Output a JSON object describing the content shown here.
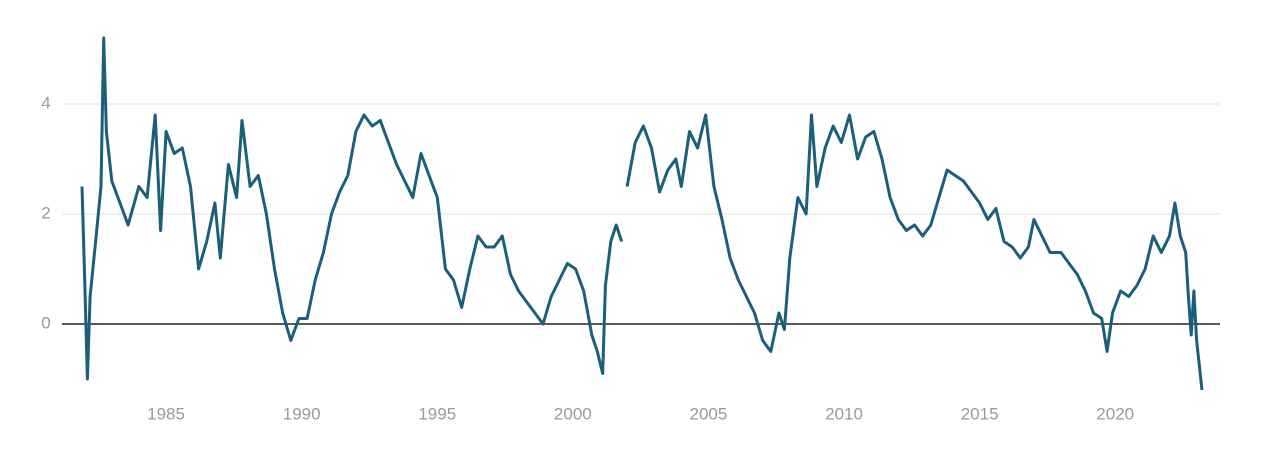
{
  "chart_data": {
    "type": "line",
    "x": [
      1981.9,
      1982.0,
      1982.1,
      1982.2,
      1982.4,
      1982.6,
      1982.7,
      1982.8,
      1983.0,
      1983.3,
      1983.6,
      1984.0,
      1984.3,
      1984.6,
      1984.8,
      1985.0,
      1985.3,
      1985.6,
      1985.9,
      1986.2,
      1986.5,
      1986.8,
      1987.0,
      1987.3,
      1987.6,
      1987.8,
      1988.1,
      1988.4,
      1988.7,
      1989.0,
      1989.3,
      1989.6,
      1989.9,
      1990.2,
      1990.5,
      1990.8,
      1991.1,
      1991.4,
      1991.7,
      1992.0,
      1992.3,
      1992.6,
      1992.9,
      1993.2,
      1993.5,
      1993.8,
      1994.1,
      1994.4,
      1994.7,
      1995.0,
      1995.3,
      1995.6,
      1995.9,
      1996.2,
      1996.5,
      1996.8,
      1997.1,
      1997.4,
      1997.7,
      1998.0,
      1998.3,
      1998.6,
      1998.9,
      1999.2,
      1999.5,
      1999.8,
      2000.1,
      2000.4,
      2000.7,
      2000.9,
      2001.1,
      2001.2,
      2001.4,
      2001.6,
      2001.8,
      2001.9,
      2002.0,
      2002.3,
      2002.6,
      2002.9,
      2003.2,
      2003.5,
      2003.8,
      2004.0,
      2004.3,
      2004.6,
      2004.9,
      2005.2,
      2005.5,
      2005.8,
      2006.1,
      2006.4,
      2006.7,
      2007.0,
      2007.3,
      2007.6,
      2007.8,
      2008.0,
      2008.3,
      2008.6,
      2008.8,
      2009.0,
      2009.3,
      2009.6,
      2009.9,
      2010.2,
      2010.5,
      2010.8,
      2011.1,
      2011.4,
      2011.7,
      2012.0,
      2012.3,
      2012.6,
      2012.9,
      2013.2,
      2013.5,
      2013.8,
      2014.1,
      2014.4,
      2014.7,
      2015.0,
      2015.3,
      2015.6,
      2015.9,
      2016.2,
      2016.5,
      2016.8,
      2017.0,
      2017.3,
      2017.6,
      2018.0,
      2018.3,
      2018.6,
      2018.9,
      2019.2,
      2019.5,
      2019.7,
      2019.9,
      2020.2,
      2020.5,
      2020.8,
      2021.1,
      2021.4,
      2021.7,
      2022.0,
      2022.2,
      2022.4,
      2022.6,
      2022.7,
      2022.8,
      2022.9,
      2023.0,
      2023.2
    ],
    "series": [
      {
        "color": "#1b5f7b",
        "values": [
          2.5,
          0.8,
          -1.0,
          0.5,
          1.5,
          2.5,
          5.2,
          3.5,
          2.6,
          2.2,
          1.8,
          2.5,
          2.3,
          3.8,
          1.7,
          3.5,
          3.1,
          3.2,
          2.5,
          1.0,
          1.5,
          2.2,
          1.2,
          2.9,
          2.3,
          3.7,
          2.5,
          2.7,
          2.0,
          1.0,
          0.2,
          -0.3,
          0.1,
          0.1,
          0.8,
          1.3,
          2.0,
          2.4,
          2.7,
          3.5,
          3.8,
          3.6,
          3.7,
          3.3,
          2.9,
          2.6,
          2.3,
          3.1,
          2.7,
          2.3,
          1.0,
          0.8,
          0.3,
          1.0,
          1.6,
          1.4,
          1.4,
          1.6,
          0.9,
          0.6,
          0.4,
          0.2,
          0.0,
          0.5,
          0.8,
          1.1,
          1.0,
          0.6,
          -0.2,
          -0.5,
          -0.9,
          0.7,
          1.5,
          1.8,
          1.5,
          null,
          2.5,
          3.3,
          3.6,
          3.2,
          2.4,
          2.8,
          3.0,
          2.5,
          3.5,
          3.2,
          3.8,
          2.5,
          1.9,
          1.2,
          0.8,
          0.5,
          0.2,
          -0.3,
          -0.5,
          0.2,
          -0.1,
          1.2,
          2.3,
          2.0,
          3.8,
          2.5,
          3.2,
          3.6,
          3.3,
          3.8,
          3.0,
          3.4,
          3.5,
          3.0,
          2.3,
          1.9,
          1.7,
          1.8,
          1.6,
          1.8,
          2.3,
          2.8,
          2.7,
          2.6,
          2.4,
          2.2,
          1.9,
          2.1,
          1.5,
          1.4,
          1.2,
          1.4,
          1.9,
          1.6,
          1.3,
          1.3,
          1.1,
          0.9,
          0.6,
          0.2,
          0.1,
          -0.5,
          0.2,
          0.6,
          0.5,
          0.7,
          1.0,
          1.6,
          1.3,
          1.6,
          2.2,
          1.6,
          1.3,
          0.5,
          -0.2,
          0.6,
          -0.3,
          -1.2
        ]
      }
    ],
    "xlim": [
      1981.9,
      2023.2
    ],
    "xticks": [
      1985,
      1990,
      1995,
      2000,
      2005,
      2010,
      2015,
      2020
    ],
    "ylim": [
      -1.2,
      5.3
    ],
    "yticks": [
      0,
      2,
      4
    ],
    "grid": true,
    "zero_line": true
  }
}
